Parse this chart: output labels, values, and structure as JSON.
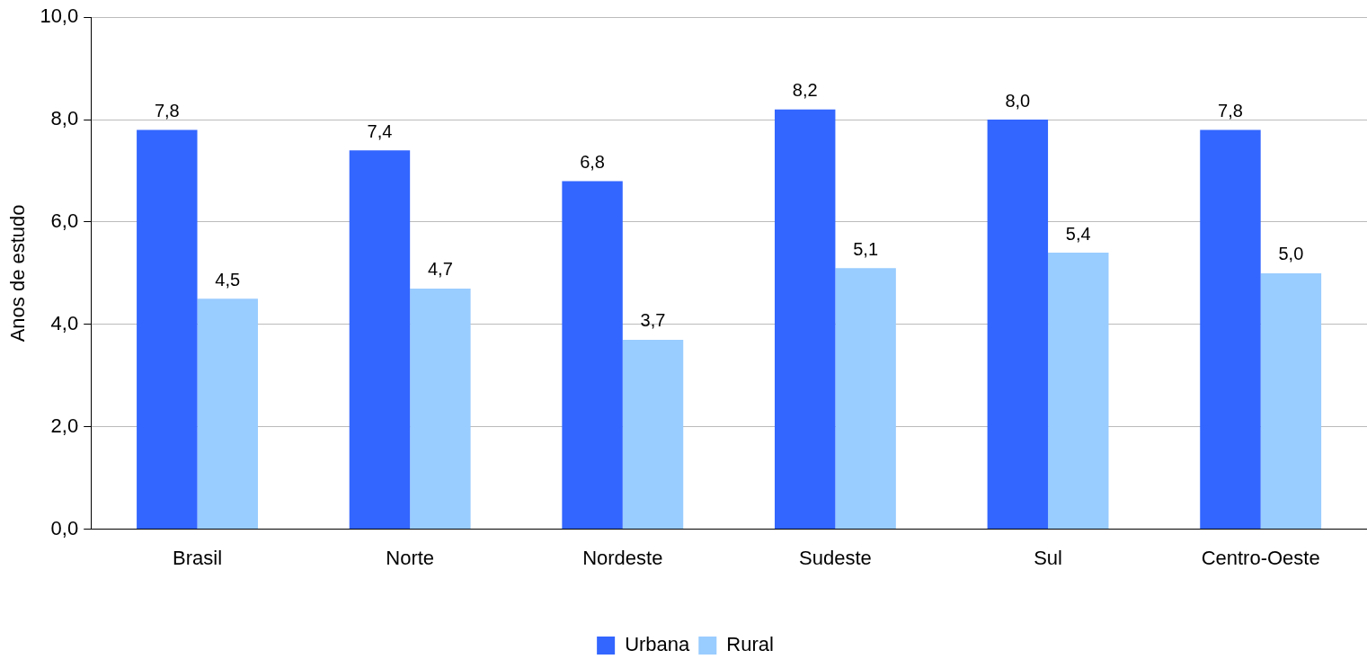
{
  "chart_data": {
    "type": "bar",
    "ylabel": "Anos de estudo",
    "categories": [
      "Brasil",
      "Norte",
      "Nordeste",
      "Sudeste",
      "Sul",
      "Centro-Oeste"
    ],
    "series": [
      {
        "name": "Urbana",
        "color": "#3366ff",
        "values": [
          7.8,
          7.4,
          6.8,
          8.2,
          8.0,
          7.8
        ],
        "value_labels": [
          "7,8",
          "7,4",
          "6,8",
          "8,2",
          "8,0",
          "7,8"
        ]
      },
      {
        "name": "Rural",
        "color": "#99ccff",
        "values": [
          4.5,
          4.7,
          3.7,
          5.1,
          5.4,
          5.0
        ],
        "value_labels": [
          "4,5",
          "4,7",
          "3,7",
          "5,1",
          "5,4",
          "5,0"
        ]
      }
    ],
    "ylim": [
      0,
      10
    ],
    "yticks": [
      {
        "value": 0,
        "label": "0,0"
      },
      {
        "value": 2,
        "label": "2,0"
      },
      {
        "value": 4,
        "label": "4,0"
      },
      {
        "value": 6,
        "label": "6,0"
      },
      {
        "value": 8,
        "label": "8,0"
      },
      {
        "value": 10,
        "label": "10,0"
      }
    ],
    "grid": "y",
    "legend": "bottom"
  }
}
